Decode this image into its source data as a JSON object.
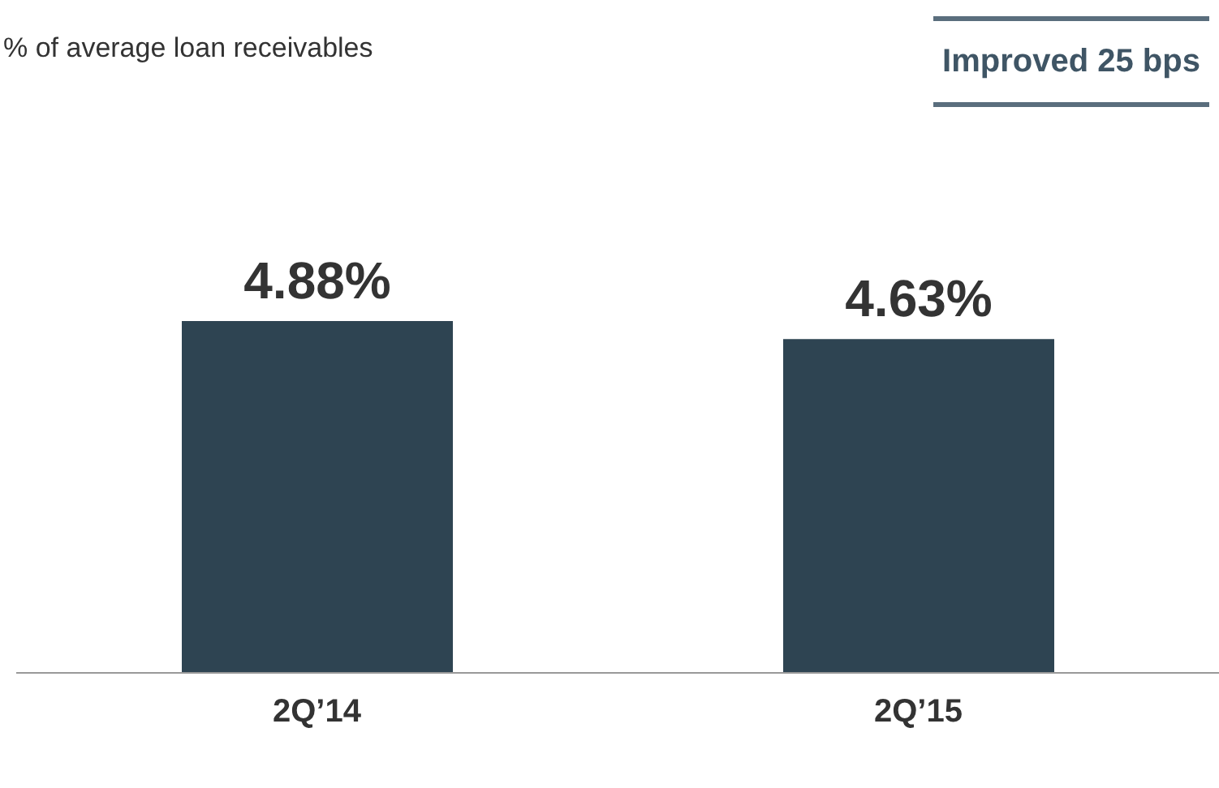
{
  "chart_data": {
    "type": "bar",
    "subtitle": "% of average loan receivables",
    "annotations": [
      "Improved 25 bps"
    ],
    "categories": [
      "2Q’14",
      "2Q’15"
    ],
    "values": [
      4.88,
      4.63
    ],
    "value_labels": [
      "4.88%",
      "4.63%"
    ],
    "color": "#2e4452"
  }
}
